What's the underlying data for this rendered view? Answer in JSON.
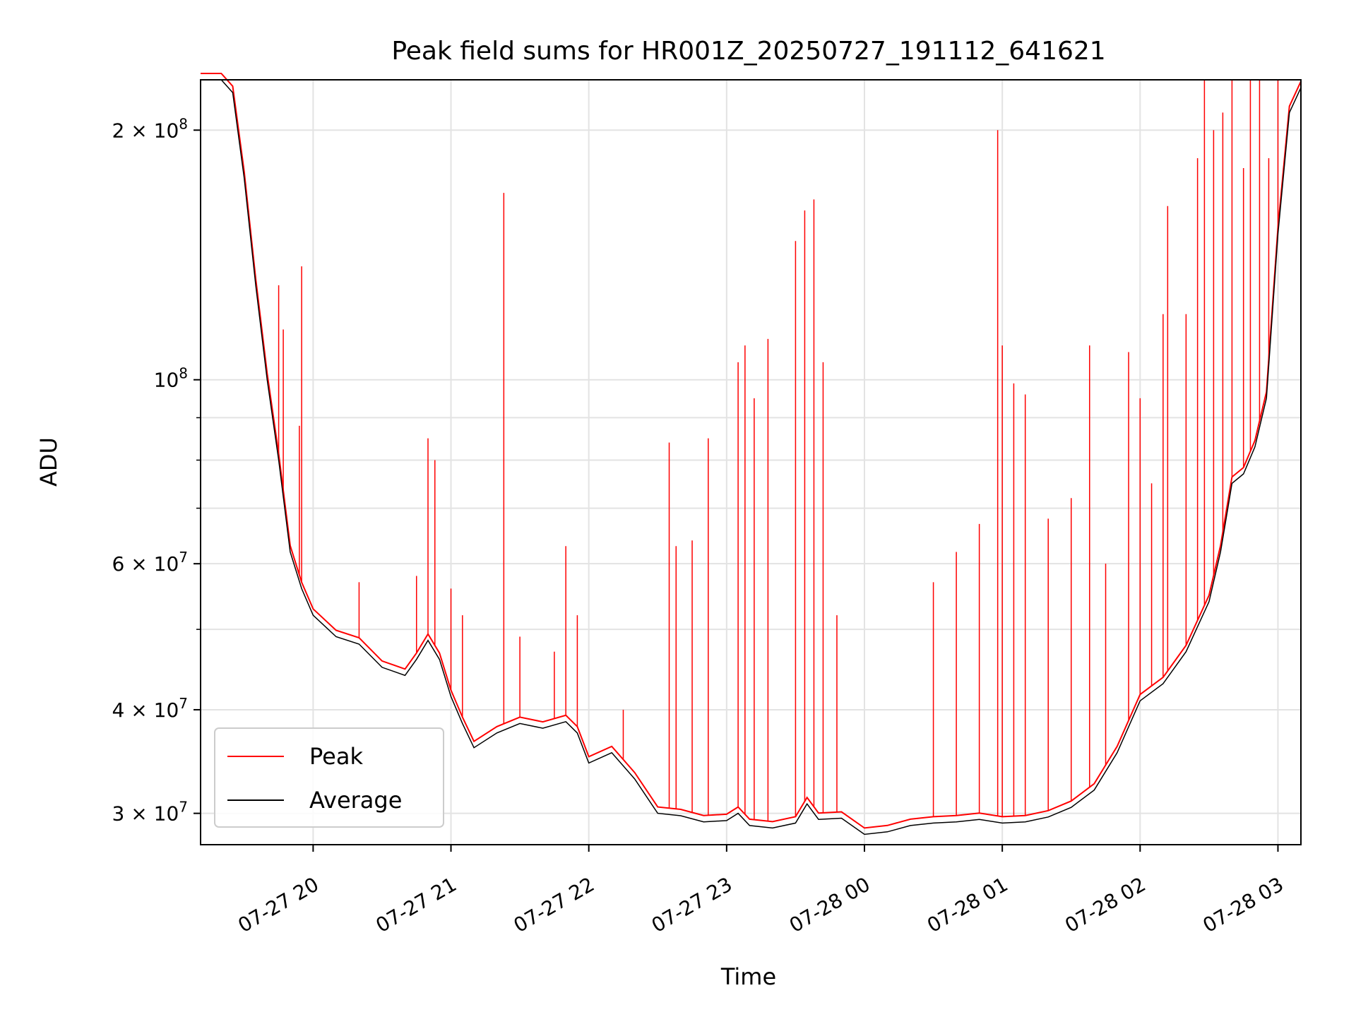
{
  "chart_data": {
    "type": "line",
    "title": "Peak field sums for HR001Z_20250727_191112_641621",
    "xlabel": "Time",
    "ylabel": "ADU",
    "yscale": "log",
    "grid": true,
    "legend_position": "lower left",
    "xlim": [
      "2025-07-27 19:11",
      "2025-07-28 03:10"
    ],
    "ylim": [
      27500000,
      230000000
    ],
    "x_ticks": [
      {
        "value": "2025-07-27 20:00",
        "label": "07-27 20"
      },
      {
        "value": "2025-07-27 21:00",
        "label": "07-27 21"
      },
      {
        "value": "2025-07-27 22:00",
        "label": "07-27 22"
      },
      {
        "value": "2025-07-27 23:00",
        "label": "07-27 23"
      },
      {
        "value": "2025-07-28 00:00",
        "label": "07-28 00"
      },
      {
        "value": "2025-07-28 01:00",
        "label": "07-28 01"
      },
      {
        "value": "2025-07-28 02:00",
        "label": "07-28 02"
      },
      {
        "value": "2025-07-28 03:00",
        "label": "07-28 03"
      }
    ],
    "y_ticks": [
      {
        "value": 30000000,
        "mantissa": "3",
        "exponent": "7"
      },
      {
        "value": 40000000,
        "mantissa": "4",
        "exponent": "7"
      },
      {
        "value": 60000000,
        "mantissa": "6",
        "exponent": "7"
      },
      {
        "value": 100000000,
        "mantissa": "",
        "exponent": "8"
      },
      {
        "value": 200000000,
        "mantissa": "2",
        "exponent": "8"
      }
    ],
    "y_minor_ticks": [
      50000000,
      70000000,
      80000000,
      90000000
    ],
    "series": [
      {
        "name": "Average",
        "color": "#000000",
        "points": [
          [
            "2025-07-27 19:11",
            230000000
          ],
          [
            "2025-07-27 19:20",
            230000000
          ],
          [
            "2025-07-27 19:25",
            222000000
          ],
          [
            "2025-07-27 19:30",
            175000000
          ],
          [
            "2025-07-27 19:35",
            130000000
          ],
          [
            "2025-07-27 19:40",
            100000000
          ],
          [
            "2025-07-27 19:45",
            80000000
          ],
          [
            "2025-07-27 19:50",
            62000000
          ],
          [
            "2025-07-27 19:55",
            56000000
          ],
          [
            "2025-07-27 20:00",
            52000000
          ],
          [
            "2025-07-27 20:10",
            49000000
          ],
          [
            "2025-07-27 20:20",
            48000000
          ],
          [
            "2025-07-27 20:30",
            45000000
          ],
          [
            "2025-07-27 20:35",
            44500000
          ],
          [
            "2025-07-27 20:40",
            44000000
          ],
          [
            "2025-07-27 20:45",
            46000000
          ],
          [
            "2025-07-27 20:50",
            48500000
          ],
          [
            "2025-07-27 20:55",
            46000000
          ],
          [
            "2025-07-27 21:00",
            41500000
          ],
          [
            "2025-07-27 21:05",
            38500000
          ],
          [
            "2025-07-27 21:10",
            36000000
          ],
          [
            "2025-07-27 21:20",
            37500000
          ],
          [
            "2025-07-27 21:30",
            38500000
          ],
          [
            "2025-07-27 21:40",
            38000000
          ],
          [
            "2025-07-27 21:50",
            38700000
          ],
          [
            "2025-07-27 21:55",
            37500000
          ],
          [
            "2025-07-27 22:00",
            34500000
          ],
          [
            "2025-07-27 22:10",
            35500000
          ],
          [
            "2025-07-27 22:20",
            33000000
          ],
          [
            "2025-07-27 22:30",
            30000000
          ],
          [
            "2025-07-27 22:40",
            29800000
          ],
          [
            "2025-07-27 22:50",
            29300000
          ],
          [
            "2025-07-27 23:00",
            29400000
          ],
          [
            "2025-07-27 23:05",
            30000000
          ],
          [
            "2025-07-27 23:10",
            29000000
          ],
          [
            "2025-07-27 23:20",
            28800000
          ],
          [
            "2025-07-27 23:30",
            29200000
          ],
          [
            "2025-07-27 23:35",
            30800000
          ],
          [
            "2025-07-27 23:40",
            29500000
          ],
          [
            "2025-07-27 23:50",
            29600000
          ],
          [
            "2025-07-28 00:00",
            28300000
          ],
          [
            "2025-07-28 00:10",
            28500000
          ],
          [
            "2025-07-28 00:20",
            29000000
          ],
          [
            "2025-07-28 00:30",
            29200000
          ],
          [
            "2025-07-28 00:40",
            29300000
          ],
          [
            "2025-07-28 00:50",
            29500000
          ],
          [
            "2025-07-28 01:00",
            29200000
          ],
          [
            "2025-07-28 01:10",
            29300000
          ],
          [
            "2025-07-28 01:20",
            29700000
          ],
          [
            "2025-07-28 01:30",
            30500000
          ],
          [
            "2025-07-28 01:40",
            32000000
          ],
          [
            "2025-07-28 01:50",
            35500000
          ],
          [
            "2025-07-28 02:00",
            41000000
          ],
          [
            "2025-07-28 02:10",
            43000000
          ],
          [
            "2025-07-28 02:20",
            47000000
          ],
          [
            "2025-07-28 02:30",
            54000000
          ],
          [
            "2025-07-28 02:35",
            62000000
          ],
          [
            "2025-07-28 02:40",
            75000000
          ],
          [
            "2025-07-28 02:45",
            77000000
          ],
          [
            "2025-07-28 02:50",
            83000000
          ],
          [
            "2025-07-28 02:55",
            95000000
          ],
          [
            "2025-07-28 03:00",
            150000000
          ],
          [
            "2025-07-28 03:05",
            210000000
          ],
          [
            "2025-07-28 03:10",
            225000000
          ]
        ]
      },
      {
        "name": "Peak",
        "color": "#ff0000",
        "spikes": [
          [
            "2025-07-27 19:45",
            130000000
          ],
          [
            "2025-07-27 19:47",
            115000000
          ],
          [
            "2025-07-27 19:55",
            137000000
          ],
          [
            "2025-07-27 19:54",
            88000000
          ],
          [
            "2025-07-27 20:20",
            57000000
          ],
          [
            "2025-07-27 20:50",
            85000000
          ],
          [
            "2025-07-27 20:53",
            80000000
          ],
          [
            "2025-07-27 20:45",
            58000000
          ],
          [
            "2025-07-27 21:00",
            56000000
          ],
          [
            "2025-07-27 21:05",
            52000000
          ],
          [
            "2025-07-27 21:23",
            168000000
          ],
          [
            "2025-07-27 21:30",
            49000000
          ],
          [
            "2025-07-27 21:45",
            47000000
          ],
          [
            "2025-07-27 21:50",
            63000000
          ],
          [
            "2025-07-27 21:55",
            52000000
          ],
          [
            "2025-07-27 22:15",
            40000000
          ],
          [
            "2025-07-27 22:35",
            84000000
          ],
          [
            "2025-07-27 22:38",
            63000000
          ],
          [
            "2025-07-27 22:45",
            64000000
          ],
          [
            "2025-07-27 22:52",
            85000000
          ],
          [
            "2025-07-27 23:05",
            105000000
          ],
          [
            "2025-07-27 23:08",
            110000000
          ],
          [
            "2025-07-27 23:12",
            95000000
          ],
          [
            "2025-07-27 23:18",
            112000000
          ],
          [
            "2025-07-27 23:30",
            147000000
          ],
          [
            "2025-07-27 23:34",
            160000000
          ],
          [
            "2025-07-27 23:38",
            165000000
          ],
          [
            "2025-07-27 23:42",
            105000000
          ],
          [
            "2025-07-27 23:48",
            52000000
          ],
          [
            "2025-07-28 00:30",
            57000000
          ],
          [
            "2025-07-28 00:40",
            62000000
          ],
          [
            "2025-07-28 00:50",
            67000000
          ],
          [
            "2025-07-28 00:58",
            200000000
          ],
          [
            "2025-07-28 01:00",
            110000000
          ],
          [
            "2025-07-28 01:05",
            99000000
          ],
          [
            "2025-07-28 01:10",
            96000000
          ],
          [
            "2025-07-28 01:20",
            68000000
          ],
          [
            "2025-07-28 01:30",
            72000000
          ],
          [
            "2025-07-28 01:38",
            110000000
          ],
          [
            "2025-07-28 01:45",
            60000000
          ],
          [
            "2025-07-28 01:55",
            108000000
          ],
          [
            "2025-07-28 02:00",
            95000000
          ],
          [
            "2025-07-28 02:05",
            75000000
          ],
          [
            "2025-07-28 02:10",
            120000000
          ],
          [
            "2025-07-28 02:12",
            162000000
          ],
          [
            "2025-07-28 02:20",
            120000000
          ],
          [
            "2025-07-28 02:25",
            185000000
          ],
          [
            "2025-07-28 02:28",
            230000000
          ],
          [
            "2025-07-28 02:32",
            200000000
          ],
          [
            "2025-07-28 02:36",
            210000000
          ],
          [
            "2025-07-28 02:40",
            230000000
          ],
          [
            "2025-07-28 02:45",
            180000000
          ],
          [
            "2025-07-28 02:48",
            230000000
          ],
          [
            "2025-07-28 02:52",
            230000000
          ],
          [
            "2025-07-28 02:56",
            185000000
          ],
          [
            "2025-07-28 03:00",
            230000000
          ]
        ]
      }
    ]
  }
}
